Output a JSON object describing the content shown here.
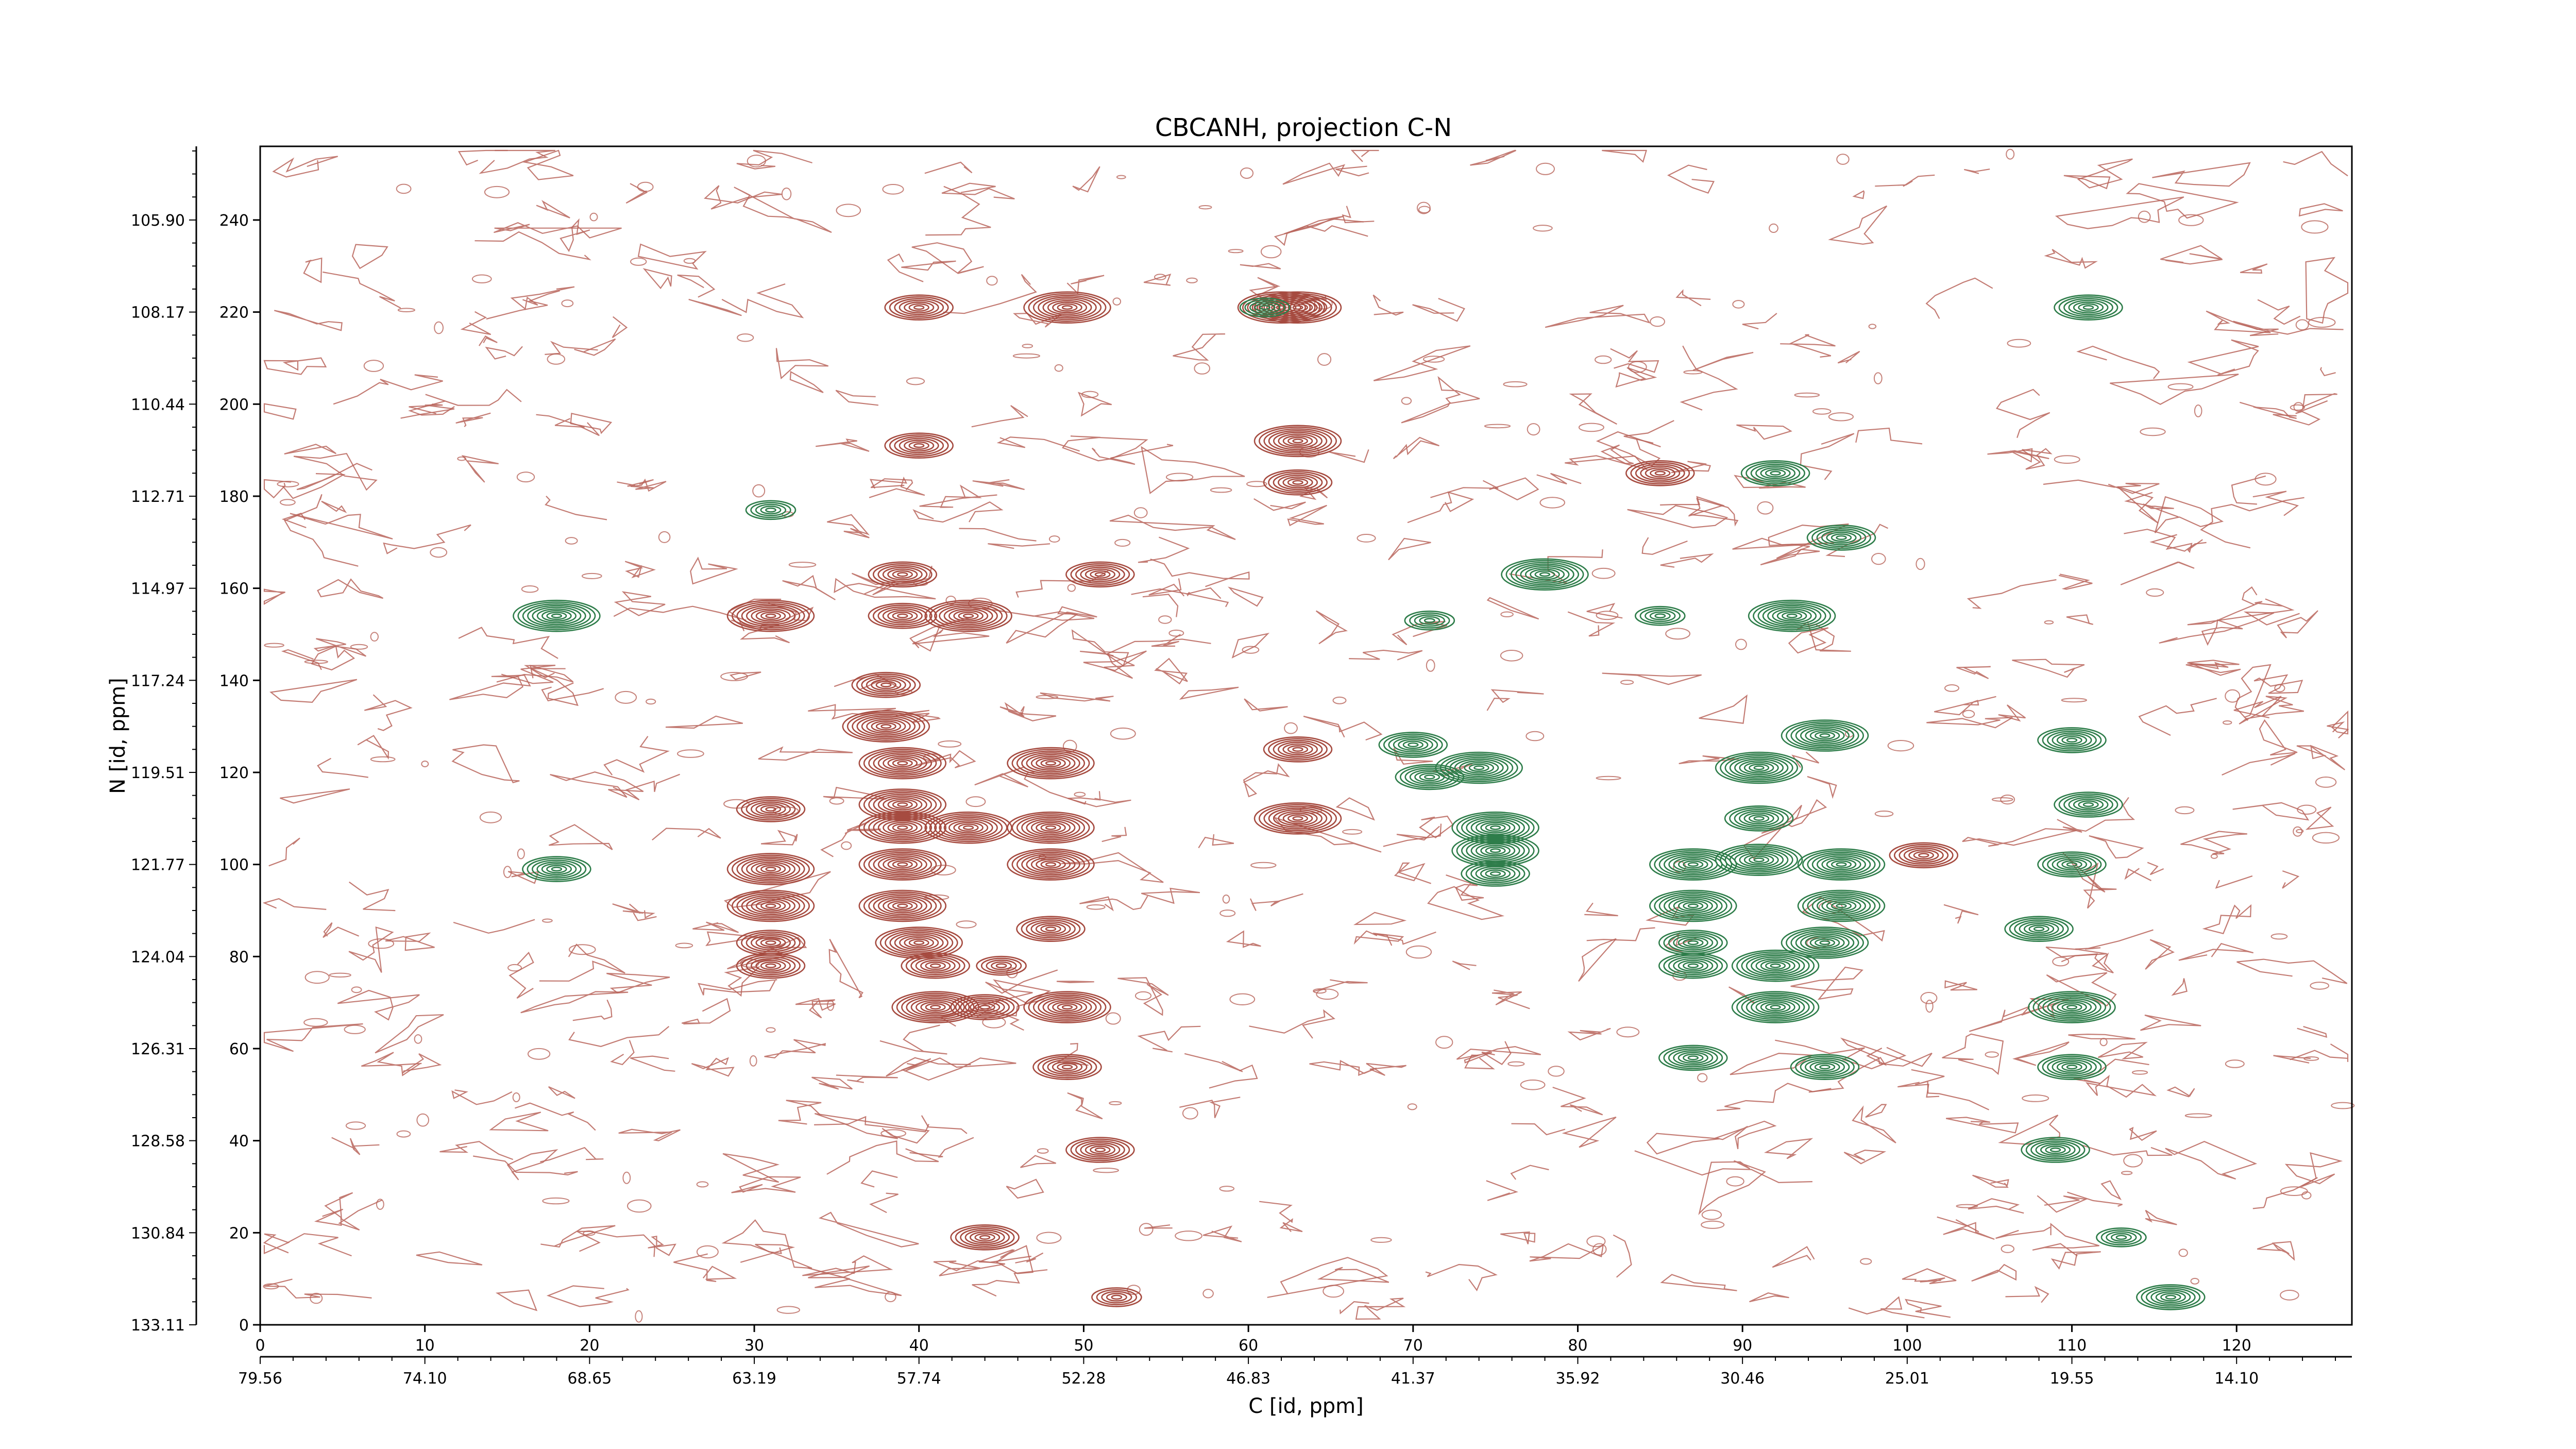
{
  "chart_data": {
    "type": "contour",
    "title": "CBCANH, projection C-N",
    "xlabel": "C [id, ppm]",
    "ylabel": "N [id, ppm]",
    "x_index_ticks": [
      "0",
      "10",
      "20",
      "30",
      "40",
      "50",
      "60",
      "70",
      "80",
      "90",
      "100",
      "110",
      "120"
    ],
    "x_ppm_ticks": [
      "79.56",
      "74.10",
      "68.65",
      "63.19",
      "57.74",
      "52.28",
      "46.83",
      "41.37",
      "35.92",
      "30.46",
      "25.01",
      "19.55",
      "14.10"
    ],
    "y_index_ticks": [
      "0",
      "20",
      "40",
      "60",
      "80",
      "100",
      "120",
      "140",
      "160",
      "180",
      "200",
      "220",
      "240"
    ],
    "y_ppm_ticks": [
      "133.11",
      "130.84",
      "128.58",
      "126.31",
      "124.04",
      "121.77",
      "119.51",
      "117.24",
      "114.97",
      "112.71",
      "110.44",
      "108.17",
      "105.90"
    ],
    "xlim": [
      0,
      127
    ],
    "ylim": [
      0,
      256
    ],
    "colors": {
      "positive": "#a64b40",
      "negative": "#2e7d4a",
      "noise": "#b8645a"
    },
    "peaks": [
      {
        "x": 18,
        "y": 154,
        "sign": "neg",
        "s": 3
      },
      {
        "x": 18,
        "y": 99,
        "sign": "neg",
        "s": 2
      },
      {
        "x": 31,
        "y": 154,
        "sign": "pos",
        "s": 3
      },
      {
        "x": 31,
        "y": 99,
        "sign": "pos",
        "s": 3
      },
      {
        "x": 31,
        "y": 91,
        "sign": "pos",
        "s": 3
      },
      {
        "x": 31,
        "y": 83,
        "sign": "pos",
        "s": 2
      },
      {
        "x": 31,
        "y": 78,
        "sign": "pos",
        "s": 2
      },
      {
        "x": 31,
        "y": 112,
        "sign": "pos",
        "s": 2
      },
      {
        "x": 31,
        "y": 177,
        "sign": "neg",
        "s": 1
      },
      {
        "x": 38,
        "y": 139,
        "sign": "pos",
        "s": 2
      },
      {
        "x": 38,
        "y": 130,
        "sign": "pos",
        "s": 3
      },
      {
        "x": 39,
        "y": 122,
        "sign": "pos",
        "s": 3
      },
      {
        "x": 39,
        "y": 113,
        "sign": "pos",
        "s": 3
      },
      {
        "x": 39,
        "y": 108,
        "sign": "pos",
        "s": 3
      },
      {
        "x": 39,
        "y": 100,
        "sign": "pos",
        "s": 3
      },
      {
        "x": 39,
        "y": 91,
        "sign": "pos",
        "s": 3
      },
      {
        "x": 40,
        "y": 83,
        "sign": "pos",
        "s": 3
      },
      {
        "x": 41,
        "y": 78,
        "sign": "pos",
        "s": 2
      },
      {
        "x": 41,
        "y": 69,
        "sign": "pos",
        "s": 3
      },
      {
        "x": 39,
        "y": 154,
        "sign": "pos",
        "s": 2
      },
      {
        "x": 39,
        "y": 163,
        "sign": "pos",
        "s": 2
      },
      {
        "x": 40,
        "y": 191,
        "sign": "pos",
        "s": 2
      },
      {
        "x": 40,
        "y": 221,
        "sign": "pos",
        "s": 2
      },
      {
        "x": 43,
        "y": 154,
        "sign": "pos",
        "s": 3
      },
      {
        "x": 43,
        "y": 108,
        "sign": "pos",
        "s": 3
      },
      {
        "x": 44,
        "y": 69,
        "sign": "pos",
        "s": 2
      },
      {
        "x": 45,
        "y": 78,
        "sign": "pos",
        "s": 1
      },
      {
        "x": 44,
        "y": 19,
        "sign": "pos",
        "s": 2
      },
      {
        "x": 48,
        "y": 122,
        "sign": "pos",
        "s": 3
      },
      {
        "x": 48,
        "y": 108,
        "sign": "pos",
        "s": 3
      },
      {
        "x": 48,
        "y": 100,
        "sign": "pos",
        "s": 3
      },
      {
        "x": 48,
        "y": 86,
        "sign": "pos",
        "s": 2
      },
      {
        "x": 49,
        "y": 69,
        "sign": "pos",
        "s": 3
      },
      {
        "x": 49,
        "y": 56,
        "sign": "pos",
        "s": 2
      },
      {
        "x": 49,
        "y": 221,
        "sign": "pos",
        "s": 3
      },
      {
        "x": 51,
        "y": 163,
        "sign": "pos",
        "s": 2
      },
      {
        "x": 51,
        "y": 38,
        "sign": "pos",
        "s": 2
      },
      {
        "x": 52,
        "y": 6,
        "sign": "pos",
        "s": 1
      },
      {
        "x": 62,
        "y": 221,
        "sign": "pos",
        "s": 3
      },
      {
        "x": 63,
        "y": 221,
        "sign": "pos",
        "s": 3
      },
      {
        "x": 63,
        "y": 192,
        "sign": "pos",
        "s": 3
      },
      {
        "x": 63,
        "y": 183,
        "sign": "pos",
        "s": 2
      },
      {
        "x": 63,
        "y": 125,
        "sign": "pos",
        "s": 2
      },
      {
        "x": 63,
        "y": 110,
        "sign": "pos",
        "s": 3
      },
      {
        "x": 61,
        "y": 221,
        "sign": "neg",
        "s": 1
      },
      {
        "x": 70,
        "y": 126,
        "sign": "neg",
        "s": 2
      },
      {
        "x": 71,
        "y": 119,
        "sign": "neg",
        "s": 2
      },
      {
        "x": 74,
        "y": 121,
        "sign": "neg",
        "s": 3
      },
      {
        "x": 75,
        "y": 108,
        "sign": "neg",
        "s": 3
      },
      {
        "x": 75,
        "y": 103,
        "sign": "neg",
        "s": 3
      },
      {
        "x": 75,
        "y": 98,
        "sign": "neg",
        "s": 2
      },
      {
        "x": 71,
        "y": 153,
        "sign": "neg",
        "s": 1
      },
      {
        "x": 78,
        "y": 163,
        "sign": "neg",
        "s": 3
      },
      {
        "x": 85,
        "y": 185,
        "sign": "pos",
        "s": 2
      },
      {
        "x": 87,
        "y": 100,
        "sign": "neg",
        "s": 3
      },
      {
        "x": 87,
        "y": 91,
        "sign": "neg",
        "s": 3
      },
      {
        "x": 87,
        "y": 83,
        "sign": "neg",
        "s": 2
      },
      {
        "x": 87,
        "y": 78,
        "sign": "neg",
        "s": 2
      },
      {
        "x": 87,
        "y": 58,
        "sign": "neg",
        "s": 2
      },
      {
        "x": 85,
        "y": 154,
        "sign": "neg",
        "s": 1
      },
      {
        "x": 91,
        "y": 121,
        "sign": "neg",
        "s": 3
      },
      {
        "x": 91,
        "y": 110,
        "sign": "neg",
        "s": 2
      },
      {
        "x": 91,
        "y": 101,
        "sign": "neg",
        "s": 3
      },
      {
        "x": 92,
        "y": 78,
        "sign": "neg",
        "s": 3
      },
      {
        "x": 92,
        "y": 69,
        "sign": "neg",
        "s": 3
      },
      {
        "x": 93,
        "y": 154,
        "sign": "neg",
        "s": 3
      },
      {
        "x": 92,
        "y": 185,
        "sign": "neg",
        "s": 2
      },
      {
        "x": 95,
        "y": 128,
        "sign": "neg",
        "s": 3
      },
      {
        "x": 96,
        "y": 100,
        "sign": "neg",
        "s": 3
      },
      {
        "x": 96,
        "y": 91,
        "sign": "neg",
        "s": 3
      },
      {
        "x": 95,
        "y": 83,
        "sign": "neg",
        "s": 3
      },
      {
        "x": 95,
        "y": 56,
        "sign": "neg",
        "s": 2
      },
      {
        "x": 96,
        "y": 171,
        "sign": "neg",
        "s": 2
      },
      {
        "x": 101,
        "y": 102,
        "sign": "pos",
        "s": 2
      },
      {
        "x": 108,
        "y": 86,
        "sign": "neg",
        "s": 2
      },
      {
        "x": 110,
        "y": 127,
        "sign": "neg",
        "s": 2
      },
      {
        "x": 111,
        "y": 113,
        "sign": "neg",
        "s": 2
      },
      {
        "x": 110,
        "y": 100,
        "sign": "neg",
        "s": 2
      },
      {
        "x": 110,
        "y": 69,
        "sign": "neg",
        "s": 3
      },
      {
        "x": 110,
        "y": 56,
        "sign": "neg",
        "s": 2
      },
      {
        "x": 109,
        "y": 38,
        "sign": "neg",
        "s": 2
      },
      {
        "x": 111,
        "y": 221,
        "sign": "neg",
        "s": 2
      },
      {
        "x": 113,
        "y": 19,
        "sign": "neg",
        "s": 1
      },
      {
        "x": 116,
        "y": 6,
        "sign": "neg",
        "s": 2
      }
    ]
  }
}
